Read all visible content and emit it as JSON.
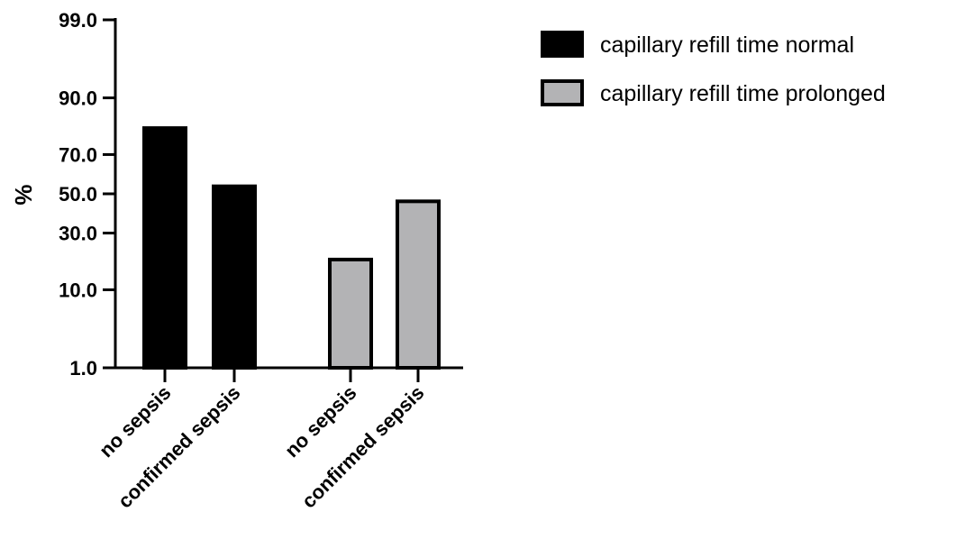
{
  "chart_data": {
    "type": "bar",
    "ylabel": "%",
    "xlabel": "",
    "y_scale": "probability",
    "ylim": [
      1.0,
      99.0
    ],
    "yticks": [
      1.0,
      10.0,
      30.0,
      50.0,
      70.0,
      90.0,
      99.0
    ],
    "ytick_labels": [
      "1.0",
      "10.0",
      "30.0",
      "50.0",
      "70.0",
      "90.0",
      "99.0"
    ],
    "categories": [
      "no sepsis",
      "confirmed sepsis",
      "no sepsis",
      "confirmed sepsis"
    ],
    "series": [
      {
        "name": "capillary refill time normal",
        "color": "#000000",
        "values": [
          81,
          54,
          null,
          null
        ]
      },
      {
        "name": "capillary refill time prolonged",
        "color": "#b3b3b5",
        "values": [
          null,
          null,
          19,
          46
        ]
      }
    ],
    "grid": false,
    "legend_position": "top-right"
  }
}
